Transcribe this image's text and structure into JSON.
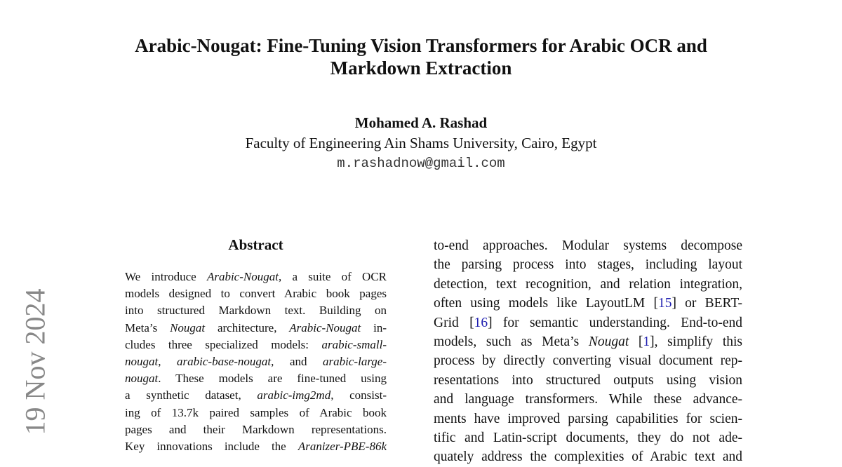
{
  "header": {
    "title_lines": [
      "Arabic-Nougat: Fine-Tuning Vision Transformers for Arabic OCR and",
      "Markdown Extraction"
    ],
    "author": "Mohamed A. Rashad",
    "affiliation": "Faculty of Engineering Ain Shams University, Cairo, Egypt",
    "email": "m.rashadnow@gmail.com"
  },
  "sidebar": {
    "date": "19 Nov 2024"
  },
  "abstract": {
    "heading": "Abstract",
    "lines": [
      [
        "We introduce ",
        {
          "text": "Arabic-Nougat",
          "style": "italic"
        },
        ", a suite of OCR"
      ],
      [
        "models designed to convert Arabic book pages"
      ],
      [
        "into structured Markdown text. Building on"
      ],
      [
        "Meta’s ",
        {
          "text": "Nougat",
          "style": "italic"
        },
        " architecture, ",
        {
          "text": "Arabic-Nougat",
          "style": "italic"
        },
        " in-"
      ],
      [
        "cludes three specialized models: ",
        {
          "text": "arabic-small-",
          "style": "italic"
        }
      ],
      [
        {
          "text": "nougat",
          "style": "italic"
        },
        ", ",
        {
          "text": "arabic-base-nougat",
          "style": "italic"
        },
        ", and ",
        {
          "text": "arabic-large-",
          "style": "italic"
        }
      ],
      [
        {
          "text": "nougat",
          "style": "italic"
        },
        ". These models are fine-tuned using"
      ],
      [
        "a synthetic dataset, ",
        {
          "text": "arabic-img2md",
          "style": "italic"
        },
        ", consist-"
      ],
      [
        "ing of 13.7k paired samples of Arabic book"
      ],
      [
        "pages and their Markdown representations."
      ],
      [
        "Key innovations include the ",
        {
          "text": "Aranizer-PBE-86k",
          "style": "italic"
        }
      ]
    ]
  },
  "right_column": {
    "lines": [
      [
        "to-end approaches. Modular systems decompose"
      ],
      [
        "the parsing process into stages, including layout"
      ],
      [
        "detection, text recognition, and relation integration,"
      ],
      [
        "often using models like LayoutLM [",
        {
          "text": "15",
          "style": "link"
        },
        "] or BERT-"
      ],
      [
        "Grid [",
        {
          "text": "16",
          "style": "link"
        },
        "] for semantic understanding. End-to-end"
      ],
      [
        "models, such as Meta’s ",
        {
          "text": "Nougat",
          "style": "italic"
        },
        " [",
        {
          "text": "1",
          "style": "link"
        },
        "], simplify this"
      ],
      [
        "process by directly converting visual document rep-"
      ],
      [
        "resentations into structured outputs using vision"
      ],
      [
        "and language transformers. While these advance-"
      ],
      [
        "ments have improved parsing capabilities for scien-"
      ],
      [
        "tific and Latin-script documents, they do not ade-"
      ],
      [
        "quately address the complexities of Arabic text and"
      ]
    ]
  }
}
